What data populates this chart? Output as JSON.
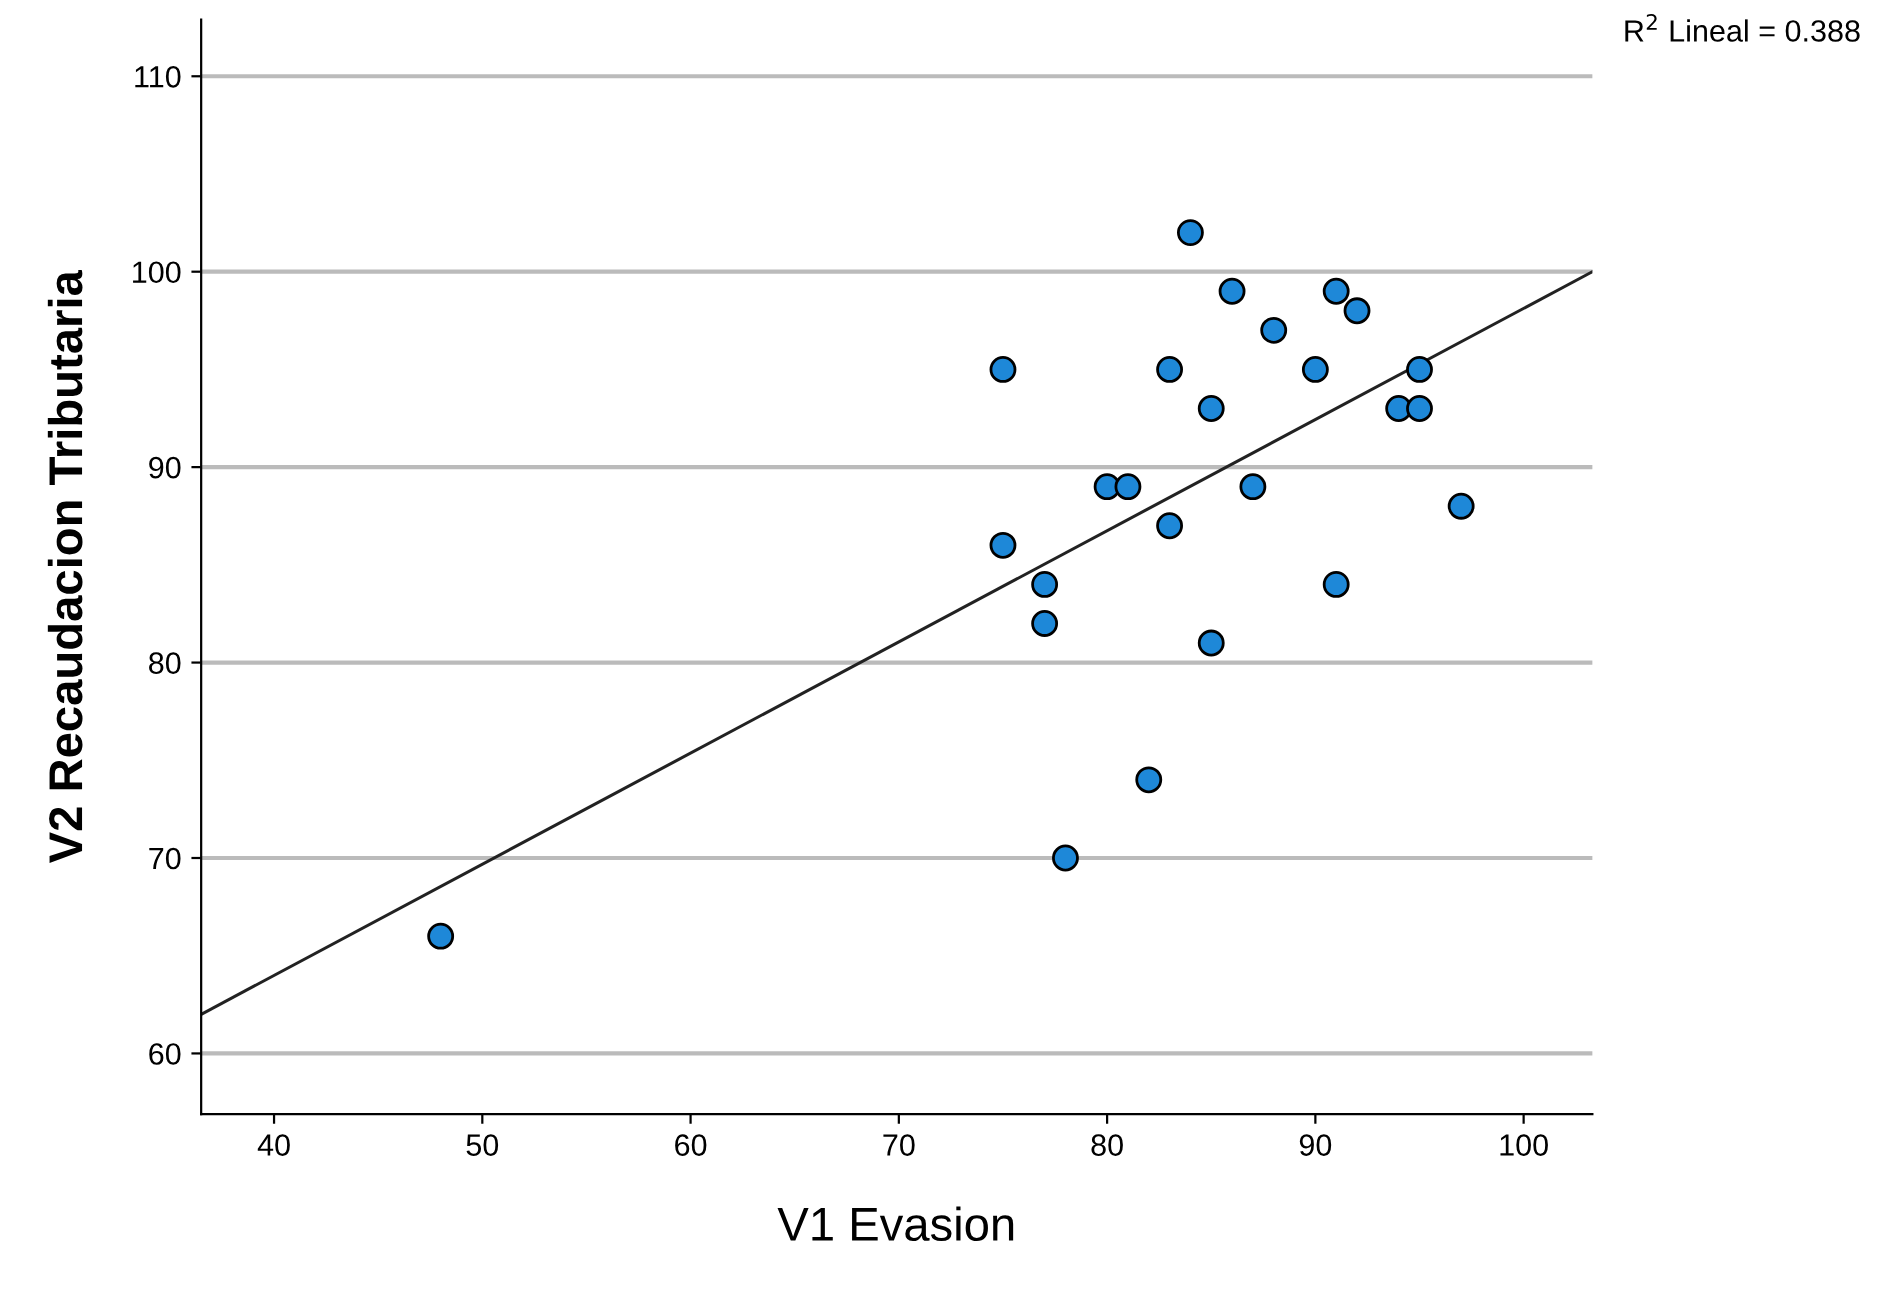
{
  "chart_data": {
    "type": "scatter",
    "xlabel": "V1 Evasion",
    "ylabel": "V2 Recaudacion Tributaria",
    "xlim": [
      36.5,
      103.3
    ],
    "ylim": [
      56.9,
      112.9
    ],
    "xticks": [
      40,
      50,
      60,
      70,
      80,
      90,
      100
    ],
    "yticks": [
      60,
      70,
      80,
      90,
      100,
      110
    ],
    "grid": "y",
    "marker": "circle",
    "annotations": [
      "R$^{2}$ Lineal = 0.388"
    ],
    "series": [
      {
        "color": "#1e88d8",
        "x": [
          48,
          75,
          75,
          77,
          77,
          78,
          80,
          81,
          82,
          83,
          83,
          84,
          85,
          85,
          86,
          87,
          88,
          90,
          91,
          91,
          92,
          94,
          95,
          95,
          97
        ],
        "values": [
          66,
          95,
          86,
          84,
          82,
          70,
          89,
          89,
          74,
          95,
          87,
          102,
          93,
          81,
          99,
          89,
          97,
          95,
          99,
          84,
          98,
          93,
          95,
          93,
          88
        ]
      },
      {
        "type": "line",
        "color": "#222222",
        "x": [
          36.5,
          103.3
        ],
        "values": [
          62,
          100
        ],
        "marker": "none"
      }
    ]
  }
}
